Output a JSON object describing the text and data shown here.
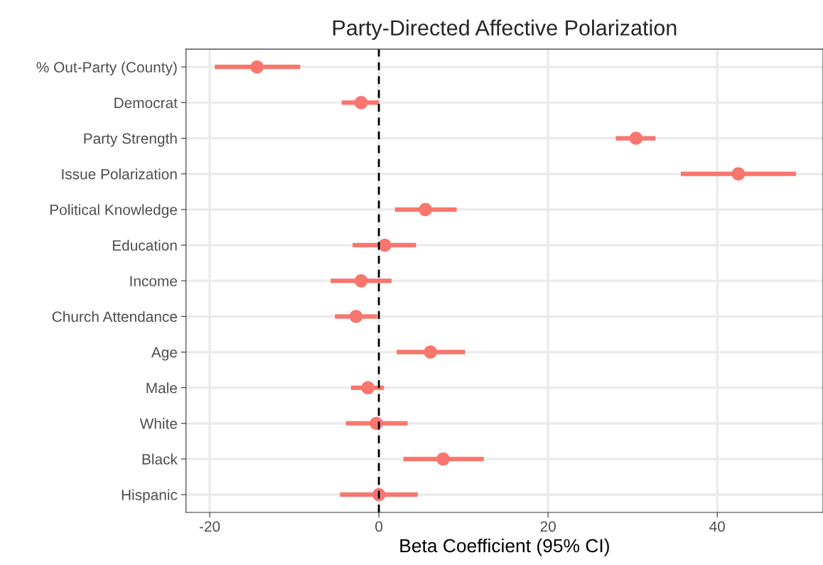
{
  "chart_data": {
    "type": "scatter",
    "orientation": "horizontal",
    "title": "Party-Directed Affective Polarization",
    "xlabel": "Beta Coefficient (95% CI)",
    "categories": [
      "% Out-Party (County)",
      "Democrat",
      "Party Strength",
      "Issue Polarization",
      "Political Knowledge",
      "Education",
      "Income",
      "Church Attendance",
      "Age",
      "Male",
      "White",
      "Black",
      "Hispanic"
    ],
    "series": [
      {
        "color": "#f8766d",
        "values": [
          -14.4,
          -2.1,
          30.4,
          42.5,
          5.5,
          0.7,
          -2.1,
          -2.7,
          6.1,
          -1.3,
          -0.3,
          7.6,
          0.0
        ],
        "errors": [
          [
            -19.4,
            -9.3
          ],
          [
            -4.4,
            0.0
          ],
          [
            28.0,
            32.7
          ],
          [
            35.7,
            49.3
          ],
          [
            1.9,
            9.2
          ],
          [
            -3.1,
            4.4
          ],
          [
            -5.7,
            1.5
          ],
          [
            -5.2,
            -0.2
          ],
          [
            2.1,
            10.2
          ],
          [
            -3.3,
            0.6
          ],
          [
            -3.9,
            3.4
          ],
          [
            2.9,
            12.4
          ],
          [
            -4.6,
            4.6
          ]
        ]
      }
    ],
    "xlim": [
      -22.8,
      52.5
    ],
    "xticks": [
      -20,
      0,
      20,
      40
    ],
    "grid": true,
    "marker": "circle",
    "ref_lines": [
      {
        "axis": "x",
        "value": 0,
        "color": "#000000",
        "line_style": "dashed"
      }
    ]
  }
}
